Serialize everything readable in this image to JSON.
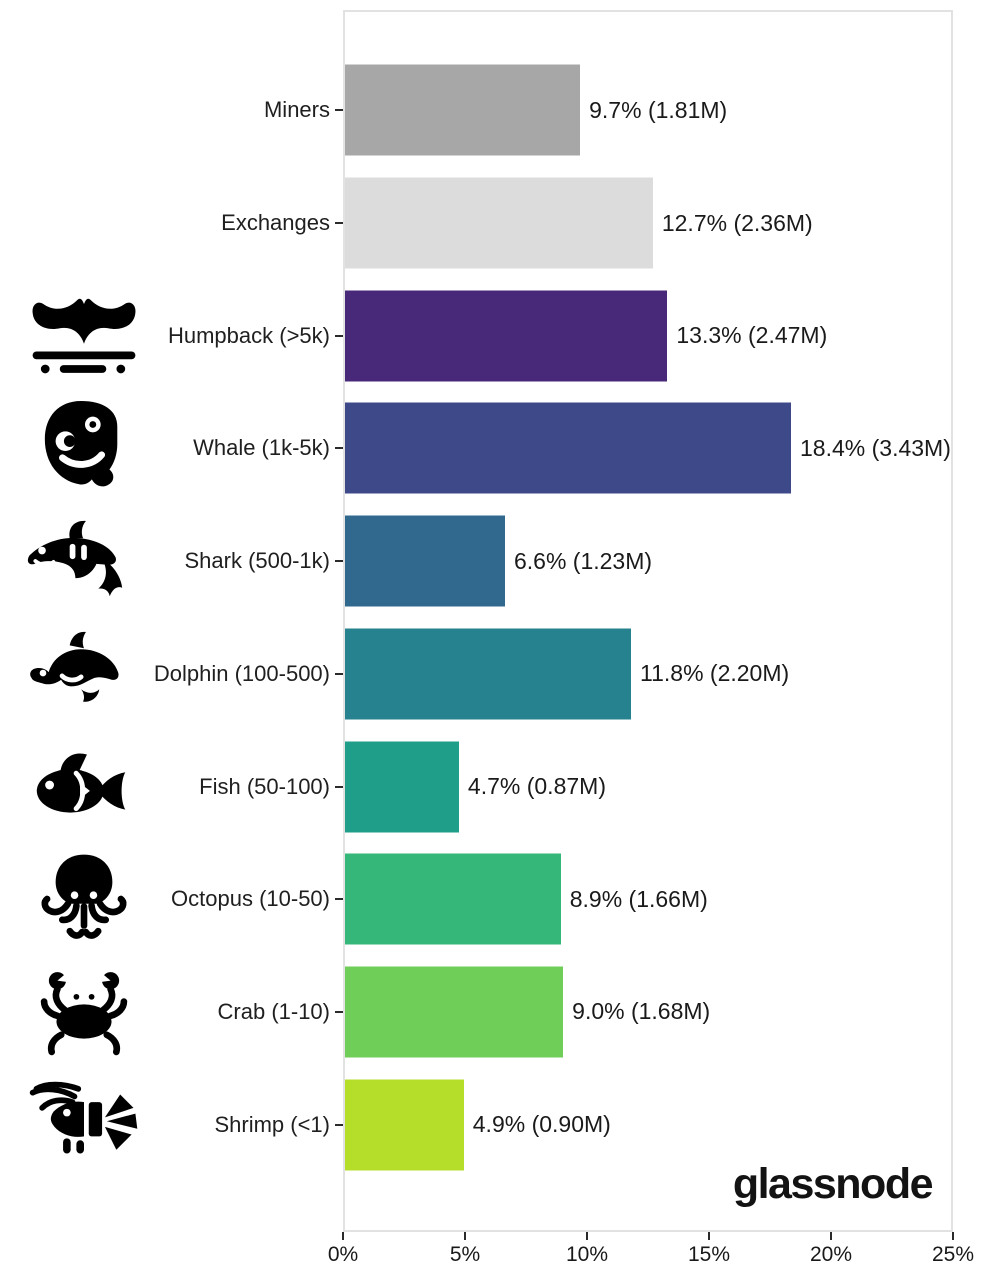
{
  "brand": {
    "logo_text": "glassnode"
  },
  "chart_data": {
    "type": "bar",
    "orientation": "horizontal",
    "title": "",
    "xlabel": "",
    "ylabel": "",
    "grid": false,
    "x_axis": {
      "range": [
        0,
        25
      ],
      "unit": "%",
      "ticks": [
        "0%",
        "5%",
        "10%",
        "15%",
        "20%",
        "25%"
      ]
    },
    "categories": [
      "Miners",
      "Exchanges",
      "Humpback (>5k)",
      "Whale (1k-5k)",
      "Shark (500-1k)",
      "Dolphin (100-500)",
      "Fish (50-100)",
      "Octopus (10-50)",
      "Crab (1-10)",
      "Shrimp (<1)"
    ],
    "rows": [
      {
        "label": "Miners",
        "pct": 9.7,
        "amount": "1.81M",
        "value_label": "9.7% (1.81M)",
        "color": "#a7a7a7",
        "icon": null
      },
      {
        "label": "Exchanges",
        "pct": 12.7,
        "amount": "2.36M",
        "value_label": "12.7% (2.36M)",
        "color": "#dcdcdc",
        "icon": null
      },
      {
        "label": "Humpback (>5k)",
        "pct": 13.3,
        "amount": "2.47M",
        "value_label": "13.3% (2.47M)",
        "color": "#482878",
        "icon": "humpback-tail-icon"
      },
      {
        "label": "Whale (1k-5k)",
        "pct": 18.4,
        "amount": "3.43M",
        "value_label": "18.4% (3.43M)",
        "color": "#3e4989",
        "icon": "whale-icon"
      },
      {
        "label": "Shark (500-1k)",
        "pct": 6.6,
        "amount": "1.23M",
        "value_label": "6.6% (1.23M)",
        "color": "#31688e",
        "icon": "shark-icon"
      },
      {
        "label": "Dolphin (100-500)",
        "pct": 11.8,
        "amount": "2.20M",
        "value_label": "11.8% (2.20M)",
        "color": "#26828e",
        "icon": "dolphin-icon"
      },
      {
        "label": "Fish (50-100)",
        "pct": 4.7,
        "amount": "0.87M",
        "value_label": "4.7% (0.87M)",
        "color": "#1f9e89",
        "icon": "fish-icon"
      },
      {
        "label": "Octopus (10-50)",
        "pct": 8.9,
        "amount": "1.66M",
        "value_label": "8.9% (1.66M)",
        "color": "#35b779",
        "icon": "octopus-icon"
      },
      {
        "label": "Crab (1-10)",
        "pct": 9.0,
        "amount": "1.68M",
        "value_label": "9.0% (1.68M)",
        "color": "#6ece58",
        "icon": "crab-icon"
      },
      {
        "label": "Shrimp (<1)",
        "pct": 4.9,
        "amount": "0.90M",
        "value_label": "4.9% (0.90M)",
        "color": "#b5de2b",
        "icon": "shrimp-icon"
      }
    ]
  }
}
